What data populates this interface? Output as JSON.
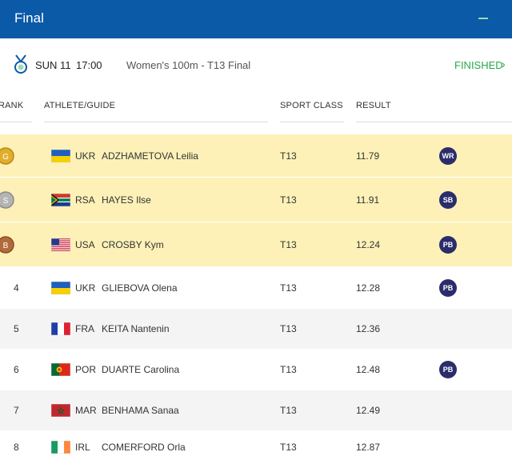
{
  "header": {
    "title": "Final"
  },
  "event": {
    "day": "SUN 11",
    "time": "17:00",
    "name": "Women's 100m - T13 Final",
    "status": "FINISHED",
    "chevron": "›"
  },
  "columns": {
    "rank": "RANK",
    "athlete": "ATHLETE/GUIDE",
    "sport_class": "SPORT CLASS",
    "result": "RESULT"
  },
  "colors": {
    "header": "#0a5aa8",
    "medal_row": "#fdf1b8",
    "finished": "#2aa84a",
    "record_badge": "#2b2d6b"
  },
  "rows": [
    {
      "medal": "G",
      "rank": "",
      "noc": "UKR",
      "flag": "ukraine-flag-icon",
      "athlete": "ADZHAMETOVA Leilia",
      "class": "T13",
      "result": "11.79",
      "record": "WR"
    },
    {
      "medal": "S",
      "rank": "",
      "noc": "RSA",
      "flag": "south-africa-flag-icon",
      "athlete": "HAYES Ilse",
      "class": "T13",
      "result": "11.91",
      "record": "SB"
    },
    {
      "medal": "B",
      "rank": "",
      "noc": "USA",
      "flag": "usa-flag-icon",
      "athlete": "CROSBY Kym",
      "class": "T13",
      "result": "12.24",
      "record": "PB"
    },
    {
      "medal": "",
      "rank": "4",
      "noc": "UKR",
      "flag": "ukraine-flag-icon",
      "athlete": "GLIEBOVA Olena",
      "class": "T13",
      "result": "12.28",
      "record": "PB"
    },
    {
      "medal": "",
      "rank": "5",
      "noc": "FRA",
      "flag": "france-flag-icon",
      "athlete": "KEITA Nantenin",
      "class": "T13",
      "result": "12.36",
      "record": ""
    },
    {
      "medal": "",
      "rank": "6",
      "noc": "POR",
      "flag": "portugal-flag-icon",
      "athlete": "DUARTE Carolina",
      "class": "T13",
      "result": "12.48",
      "record": "PB"
    },
    {
      "medal": "",
      "rank": "7",
      "noc": "MAR",
      "flag": "morocco-flag-icon",
      "athlete": "BENHAMA Sanaa",
      "class": "T13",
      "result": "12.49",
      "record": ""
    },
    {
      "medal": "",
      "rank": "8",
      "noc": "IRL",
      "flag": "ireland-flag-icon",
      "athlete": "COMERFORD Orla",
      "class": "T13",
      "result": "12.87",
      "record": ""
    }
  ]
}
